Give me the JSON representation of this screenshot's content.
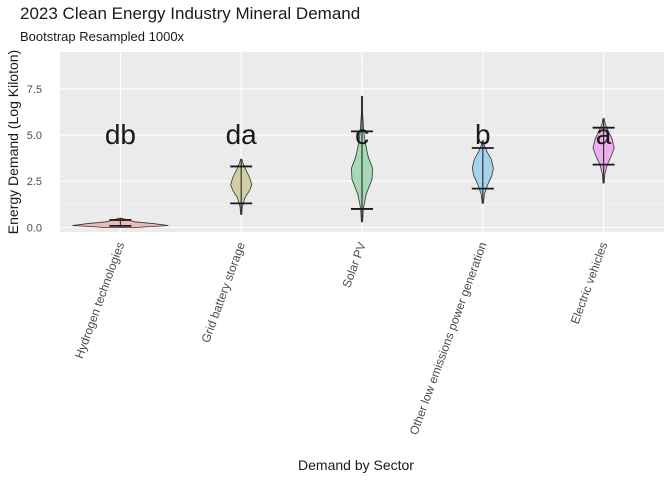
{
  "chart_data": {
    "type": "violin",
    "title": "2023 Clean Energy Industry Mineral Demand",
    "subtitle": "Bootstrap Resampled 1000x",
    "xlabel": "Demand by Sector",
    "ylabel": "Energy Demand (Log Kiloton)",
    "ylim": [
      -0.25,
      9.5
    ],
    "yticks": [
      0.0,
      2.5,
      5.0,
      7.5
    ],
    "yticklabels": [
      "0.0",
      "2.5",
      "5.0",
      "7.5"
    ],
    "grid": true,
    "legend": "none",
    "categories": [
      "Hydrogen technologies",
      "Grid battery storage",
      "Solar PV",
      "Other low emissions power generation",
      "Electric vehicles"
    ],
    "series": [
      {
        "category": "Hydrogen technologies",
        "min": 0.0,
        "q1": 0.08,
        "median": 0.17,
        "q3": 0.4,
        "max": 0.5,
        "group_letters": "db",
        "color": "#f4a6a6",
        "density": [
          [
            0.0,
            0.35
          ],
          [
            0.1,
            1.0
          ],
          [
            0.2,
            0.7
          ],
          [
            0.3,
            0.3
          ],
          [
            0.4,
            0.15
          ],
          [
            0.5,
            0.02
          ]
        ]
      },
      {
        "category": "Grid battery storage",
        "min": 0.7,
        "q1": 1.3,
        "median": 2.3,
        "q3": 3.3,
        "max": 3.7,
        "group_letters": "da",
        "color": "#c9c58c",
        "density": [
          [
            0.7,
            0.0
          ],
          [
            1.1,
            0.1
          ],
          [
            1.6,
            0.35
          ],
          [
            2.0,
            0.8
          ],
          [
            2.3,
            1.0
          ],
          [
            2.7,
            0.8
          ],
          [
            3.1,
            0.45
          ],
          [
            3.5,
            0.15
          ],
          [
            3.7,
            0.0
          ]
        ]
      },
      {
        "category": "Solar PV",
        "min": 0.3,
        "q1": 1.0,
        "median": 3.0,
        "q3": 5.2,
        "max": 7.1,
        "group_letters": "c",
        "color": "#8fd4a4",
        "density": [
          [
            0.3,
            0.0
          ],
          [
            1.0,
            0.12
          ],
          [
            1.8,
            0.4
          ],
          [
            2.6,
            0.95
          ],
          [
            3.2,
            1.0
          ],
          [
            3.8,
            0.6
          ],
          [
            4.6,
            0.3
          ],
          [
            5.3,
            0.15
          ],
          [
            6.2,
            0.05
          ],
          [
            7.1,
            0.0
          ]
        ]
      },
      {
        "category": "Other low emissions power generation",
        "min": 1.3,
        "q1": 2.1,
        "median": 3.3,
        "q3": 4.3,
        "max": 4.7,
        "group_letters": "b",
        "color": "#8ecbef",
        "density": [
          [
            1.3,
            0.0
          ],
          [
            1.8,
            0.15
          ],
          [
            2.3,
            0.45
          ],
          [
            2.8,
            0.85
          ],
          [
            3.2,
            1.0
          ],
          [
            3.7,
            0.8
          ],
          [
            4.1,
            0.4
          ],
          [
            4.5,
            0.1
          ],
          [
            4.7,
            0.0
          ]
        ]
      },
      {
        "category": "Electric vehicles",
        "min": 2.4,
        "q1": 3.4,
        "median": 4.4,
        "q3": 5.4,
        "max": 5.9,
        "group_letters": "a",
        "color": "#ee9aef",
        "density": [
          [
            2.4,
            0.0
          ],
          [
            2.9,
            0.12
          ],
          [
            3.4,
            0.35
          ],
          [
            3.9,
            0.75
          ],
          [
            4.3,
            1.0
          ],
          [
            4.8,
            0.8
          ],
          [
            5.2,
            0.45
          ],
          [
            5.6,
            0.15
          ],
          [
            5.9,
            0.0
          ]
        ]
      }
    ]
  }
}
